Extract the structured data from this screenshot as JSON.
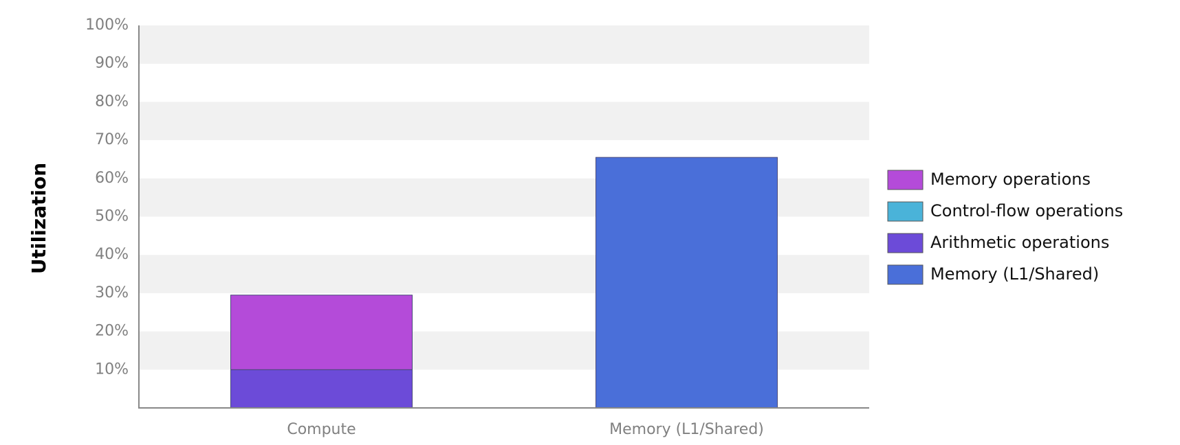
{
  "chart_data": {
    "type": "bar",
    "stacked": true,
    "categories": [
      "Compute",
      "Memory (L1/Shared)"
    ],
    "ylabel": "Utilization",
    "ylim": [
      0,
      100
    ],
    "y_ticks": [
      "10%",
      "20%",
      "30%",
      "40%",
      "50%",
      "60%",
      "70%",
      "80%",
      "90%",
      "100%"
    ],
    "grid": "alternating horizontal bands",
    "legend_position": "right",
    "series": [
      {
        "name": "Arithmetic operations",
        "color": "#6c4bd8",
        "values": [
          10,
          0
        ]
      },
      {
        "name": "Control-flow operations",
        "color": "#4ab3d9",
        "values": [
          0,
          0
        ]
      },
      {
        "name": "Memory operations",
        "color": "#b44bd9",
        "values": [
          19.5,
          0
        ]
      },
      {
        "name": "Memory (L1/Shared)",
        "color": "#4a6fd9",
        "values": [
          0,
          65.5
        ]
      }
    ],
    "legend_order": [
      "Memory operations",
      "Control-flow operations",
      "Arithmetic operations",
      "Memory (L1/Shared)"
    ]
  }
}
